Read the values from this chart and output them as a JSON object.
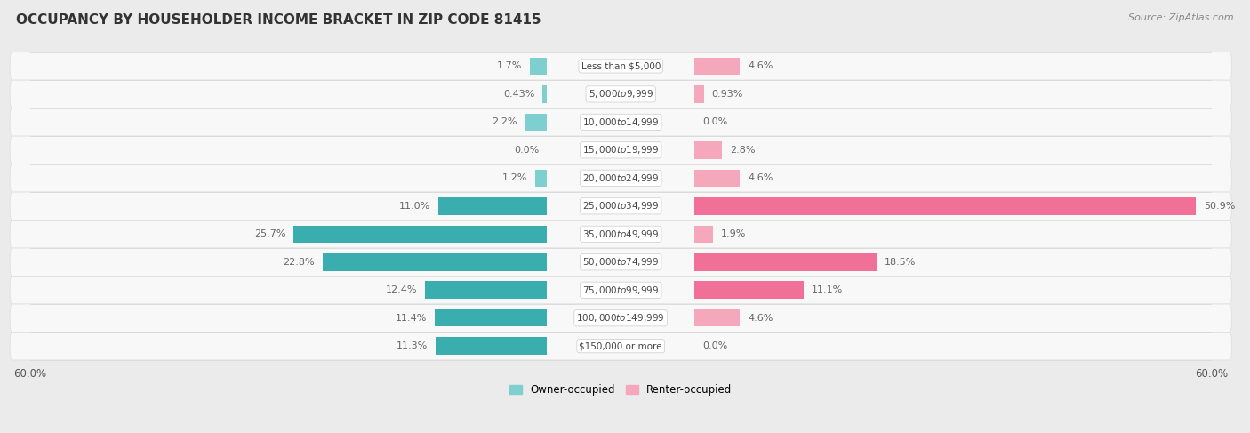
{
  "title": "OCCUPANCY BY HOUSEHOLDER INCOME BRACKET IN ZIP CODE 81415",
  "source": "Source: ZipAtlas.com",
  "categories": [
    "Less than $5,000",
    "$5,000 to $9,999",
    "$10,000 to $14,999",
    "$15,000 to $19,999",
    "$20,000 to $24,999",
    "$25,000 to $34,999",
    "$35,000 to $49,999",
    "$50,000 to $74,999",
    "$75,000 to $99,999",
    "$100,000 to $149,999",
    "$150,000 or more"
  ],
  "owner_values": [
    1.7,
    0.43,
    2.2,
    0.0,
    1.2,
    11.0,
    25.7,
    22.8,
    12.4,
    11.4,
    11.3
  ],
  "renter_values": [
    4.6,
    0.93,
    0.0,
    2.8,
    4.6,
    50.9,
    1.9,
    18.5,
    11.1,
    4.6,
    0.0
  ],
  "owner_color_light": "#7ecfcf",
  "owner_color_dark": "#3aaeae",
  "renter_color_light": "#f5a8bc",
  "renter_color_dark": "#f07098",
  "owner_label": "Owner-occupied",
  "renter_label": "Renter-occupied",
  "axis_limit": 60.0,
  "scale": 60.0,
  "background_color": "#ebebeb",
  "row_color_even": "#f5f5f5",
  "row_color_odd": "#e8e8e8",
  "title_fontsize": 11,
  "source_fontsize": 8,
  "label_fontsize": 8,
  "category_fontsize": 7.5,
  "legend_fontsize": 8.5,
  "bar_height": 0.62,
  "owner_threshold": 10.0,
  "renter_threshold": 10.0
}
